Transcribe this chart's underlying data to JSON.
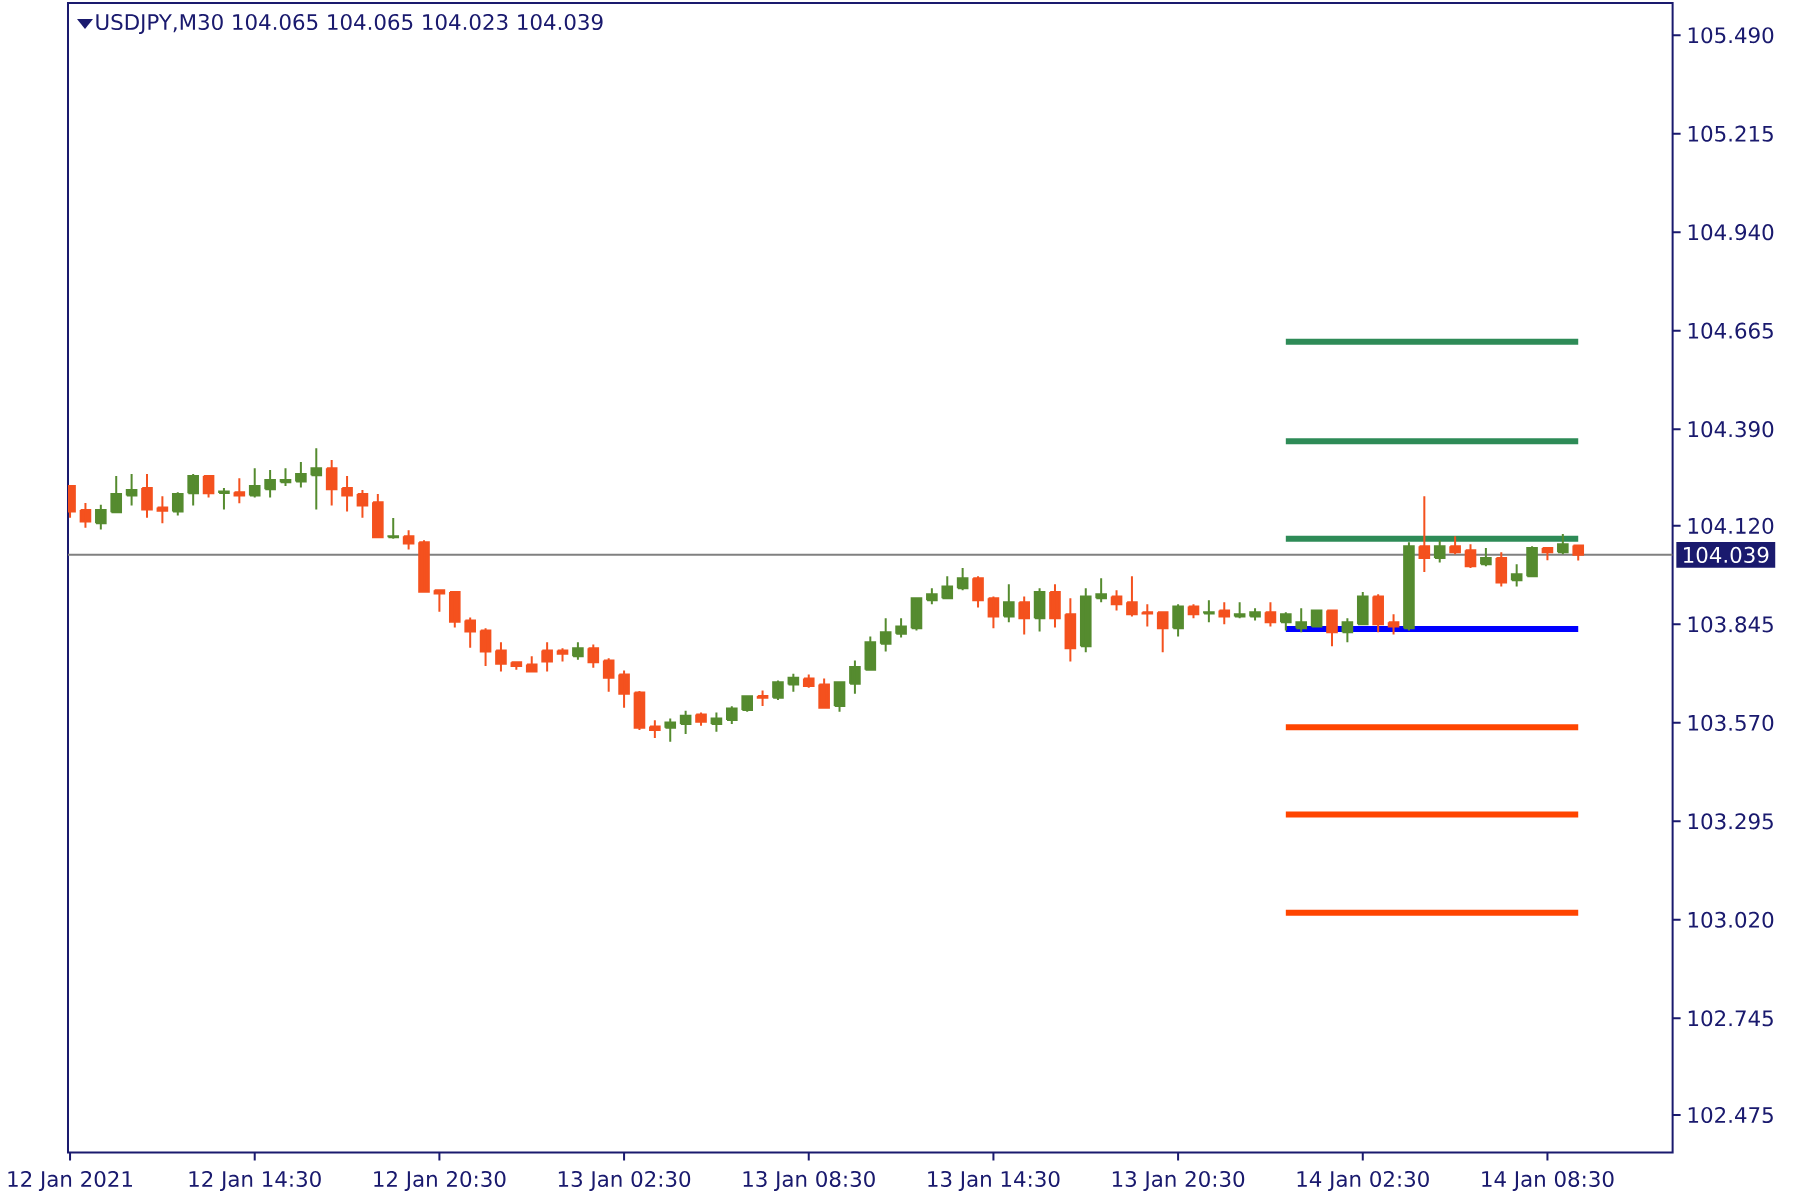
{
  "chart_data": {
    "type": "candlestick",
    "title": "USDJPY,M30  104.065 104.065 104.023 104.039",
    "x": [
      "2021-01-12T08:30",
      "2021-01-12T09:00",
      "2021-01-12T09:30",
      "2021-01-12T10:00",
      "2021-01-12T10:30",
      "2021-01-12T11:00",
      "2021-01-12T11:30",
      "2021-01-12T12:00",
      "2021-01-12T12:30",
      "2021-01-12T13:00",
      "2021-01-12T13:30",
      "2021-01-12T14:00",
      "2021-01-12T14:30",
      "2021-01-12T15:00",
      "2021-01-12T15:30",
      "2021-01-12T16:00",
      "2021-01-12T16:30",
      "2021-01-12T17:00",
      "2021-01-12T17:30",
      "2021-01-12T18:00",
      "2021-01-12T18:30",
      "2021-01-12T19:00",
      "2021-01-12T19:30",
      "2021-01-12T20:00",
      "2021-01-12T20:30",
      "2021-01-12T21:00",
      "2021-01-12T21:30",
      "2021-01-12T22:00",
      "2021-01-12T22:30",
      "2021-01-12T23:00",
      "2021-01-12T23:30",
      "2021-01-13T00:00",
      "2021-01-13T00:30",
      "2021-01-13T01:00",
      "2021-01-13T01:30",
      "2021-01-13T02:00",
      "2021-01-13T02:30",
      "2021-01-13T03:00",
      "2021-01-13T03:30",
      "2021-01-13T04:00",
      "2021-01-13T04:30",
      "2021-01-13T05:00",
      "2021-01-13T05:30",
      "2021-01-13T06:00",
      "2021-01-13T06:30",
      "2021-01-13T07:00",
      "2021-01-13T07:30",
      "2021-01-13T08:00",
      "2021-01-13T08:30",
      "2021-01-13T09:00",
      "2021-01-13T09:30",
      "2021-01-13T10:00",
      "2021-01-13T10:30",
      "2021-01-13T11:00",
      "2021-01-13T11:30",
      "2021-01-13T12:00",
      "2021-01-13T12:30",
      "2021-01-13T13:00",
      "2021-01-13T13:30",
      "2021-01-13T14:00",
      "2021-01-13T14:30",
      "2021-01-13T15:00",
      "2021-01-13T15:30",
      "2021-01-13T16:00",
      "2021-01-13T16:30",
      "2021-01-13T17:00",
      "2021-01-13T17:30",
      "2021-01-13T18:00",
      "2021-01-13T18:30",
      "2021-01-13T19:00",
      "2021-01-13T19:30",
      "2021-01-13T20:00",
      "2021-01-13T20:30",
      "2021-01-13T21:00",
      "2021-01-13T21:30",
      "2021-01-13T22:00",
      "2021-01-13T22:30",
      "2021-01-13T23:00",
      "2021-01-13T23:30",
      "2021-01-14T00:00",
      "2021-01-14T00:30",
      "2021-01-14T01:00",
      "2021-01-14T01:30",
      "2021-01-14T02:00",
      "2021-01-14T02:30",
      "2021-01-14T03:00",
      "2021-01-14T03:30",
      "2021-01-14T04:00",
      "2021-01-14T04:30",
      "2021-01-14T05:00",
      "2021-01-14T05:30",
      "2021-01-14T06:00",
      "2021-01-14T06:30",
      "2021-01-14T07:00",
      "2021-01-14T07:30",
      "2021-01-14T08:00",
      "2021-01-14T08:30",
      "2021-01-14T09:00",
      "2021-01-14T09:30"
    ],
    "ohlc": [
      [
        104.231,
        104.231,
        104.143,
        104.16
      ],
      [
        104.164,
        104.184,
        104.115,
        104.132
      ],
      [
        104.127,
        104.179,
        104.11,
        104.164
      ],
      [
        104.158,
        104.259,
        104.155,
        104.209
      ],
      [
        104.205,
        104.265,
        104.177,
        104.22
      ],
      [
        104.226,
        104.265,
        104.143,
        104.166
      ],
      [
        104.171,
        104.203,
        104.127,
        104.162
      ],
      [
        104.16,
        104.214,
        104.149,
        104.209
      ],
      [
        104.211,
        104.265,
        104.177,
        104.259
      ],
      [
        104.259,
        104.259,
        104.199,
        104.211
      ],
      [
        104.212,
        104.226,
        104.166,
        104.216
      ],
      [
        104.214,
        104.253,
        104.183,
        104.205
      ],
      [
        104.205,
        104.281,
        104.199,
        104.231
      ],
      [
        104.222,
        104.276,
        104.199,
        104.248
      ],
      [
        104.242,
        104.281,
        104.231,
        104.248
      ],
      [
        104.244,
        104.298,
        104.227,
        104.265
      ],
      [
        104.261,
        104.337,
        104.166,
        104.281
      ],
      [
        104.281,
        104.304,
        104.177,
        104.222
      ],
      [
        104.226,
        104.259,
        104.16,
        104.205
      ],
      [
        104.209,
        104.22,
        104.143,
        104.177
      ],
      [
        104.186,
        104.209,
        104.088,
        104.088
      ],
      [
        104.088,
        104.142,
        104.084,
        104.091
      ],
      [
        104.091,
        104.108,
        104.054,
        104.071
      ],
      [
        104.074,
        104.08,
        103.936,
        103.936
      ],
      [
        103.94,
        103.94,
        103.88,
        103.931
      ],
      [
        103.935,
        103.935,
        103.836,
        103.852
      ],
      [
        103.856,
        103.864,
        103.78,
        103.825
      ],
      [
        103.828,
        103.834,
        103.729,
        103.769
      ],
      [
        103.772,
        103.795,
        103.713,
        103.735
      ],
      [
        103.739,
        103.739,
        103.718,
        103.729
      ],
      [
        103.733,
        103.756,
        103.713,
        103.713
      ],
      [
        103.772,
        103.795,
        103.713,
        103.741
      ],
      [
        103.772,
        103.778,
        103.741,
        103.763
      ],
      [
        103.756,
        103.795,
        103.746,
        103.778
      ],
      [
        103.778,
        103.789,
        103.724,
        103.739
      ],
      [
        103.744,
        103.75,
        103.657,
        103.696
      ],
      [
        103.705,
        103.716,
        103.612,
        103.651
      ],
      [
        103.655,
        103.659,
        103.55,
        103.556
      ],
      [
        103.56,
        103.577,
        103.528,
        103.55
      ],
      [
        103.556,
        103.582,
        103.517,
        103.571
      ],
      [
        103.567,
        103.604,
        103.539,
        103.59
      ],
      [
        103.593,
        103.599,
        103.562,
        103.573
      ],
      [
        103.567,
        103.599,
        103.545,
        103.582
      ],
      [
        103.578,
        103.616,
        103.567,
        103.61
      ],
      [
        103.606,
        103.644,
        103.601,
        103.644
      ],
      [
        103.645,
        103.66,
        103.617,
        103.64
      ],
      [
        103.64,
        103.688,
        103.634,
        103.683
      ],
      [
        103.677,
        103.707,
        103.657,
        103.696
      ],
      [
        103.694,
        103.705,
        103.668,
        103.673
      ],
      [
        103.677,
        103.694,
        103.612,
        103.612
      ],
      [
        103.617,
        103.683,
        103.601,
        103.683
      ],
      [
        103.679,
        103.744,
        103.651,
        103.726
      ],
      [
        103.718,
        103.811,
        103.718,
        103.795
      ],
      [
        103.791,
        103.862,
        103.769,
        103.823
      ],
      [
        103.819,
        103.862,
        103.808,
        103.839
      ],
      [
        103.834,
        103.921,
        103.828,
        103.918
      ],
      [
        103.912,
        103.946,
        103.901,
        103.929
      ],
      [
        103.918,
        103.979,
        103.918,
        103.951
      ],
      [
        103.946,
        104.002,
        103.94,
        103.974
      ],
      [
        103.974,
        103.979,
        103.892,
        103.912
      ],
      [
        103.918,
        103.923,
        103.834,
        103.867
      ],
      [
        103.867,
        103.957,
        103.851,
        103.907
      ],
      [
        103.907,
        103.923,
        103.817,
        103.862
      ],
      [
        103.862,
        103.946,
        103.825,
        103.935
      ],
      [
        103.935,
        103.957,
        103.836,
        103.862
      ],
      [
        103.873,
        103.918,
        103.741,
        103.778
      ],
      [
        103.784,
        103.946,
        103.767,
        103.923
      ],
      [
        103.918,
        103.974,
        103.907,
        103.929
      ],
      [
        103.923,
        103.94,
        103.884,
        103.901
      ],
      [
        103.907,
        103.979,
        103.867,
        103.873
      ],
      [
        103.879,
        103.901,
        103.839,
        103.875
      ],
      [
        103.879,
        103.879,
        103.767,
        103.834
      ],
      [
        103.834,
        103.901,
        103.811,
        103.895
      ],
      [
        103.895,
        103.901,
        103.862,
        103.873
      ],
      [
        103.875,
        103.912,
        103.851,
        103.879
      ],
      [
        103.884,
        103.907,
        103.845,
        103.867
      ],
      [
        103.867,
        103.907,
        103.862,
        103.873
      ],
      [
        103.867,
        103.89,
        103.856,
        103.879
      ],
      [
        103.879,
        103.907,
        103.839,
        103.851
      ],
      [
        103.851,
        103.879,
        103.828,
        103.873
      ],
      [
        103.834,
        103.89,
        103.823,
        103.851
      ],
      [
        103.839,
        103.884,
        103.839,
        103.884
      ],
      [
        103.884,
        103.884,
        103.784,
        103.823
      ],
      [
        103.823,
        103.862,
        103.795,
        103.851
      ],
      [
        103.845,
        103.935,
        103.845,
        103.923
      ],
      [
        103.923,
        103.929,
        103.823,
        103.845
      ],
      [
        103.851,
        103.873,
        103.817,
        103.839
      ],
      [
        103.834,
        104.074,
        103.828,
        104.063
      ],
      [
        104.063,
        104.203,
        103.991,
        104.03
      ],
      [
        104.03,
        104.08,
        104.018,
        104.063
      ],
      [
        104.063,
        104.091,
        104.041,
        104.046
      ],
      [
        104.052,
        104.069,
        104.002,
        104.007
      ],
      [
        104.013,
        104.058,
        104.007,
        104.03
      ],
      [
        104.03,
        104.046,
        103.951,
        103.962
      ],
      [
        103.968,
        104.013,
        103.951,
        103.985
      ],
      [
        103.979,
        104.063,
        103.979,
        104.058
      ],
      [
        104.058,
        104.058,
        104.024,
        104.046
      ],
      [
        104.046,
        104.097,
        104.041,
        104.069
      ],
      [
        104.065,
        104.065,
        104.023,
        104.039
      ]
    ],
    "colors": [
      "#f4511e",
      "#f4511e",
      "#558b2f",
      "#558b2f",
      "#558b2f",
      "#f4511e",
      "#f4511e",
      "#558b2f",
      "#558b2f",
      "#f4511e",
      "#558b2f",
      "#f4511e",
      "#558b2f",
      "#558b2f",
      "#558b2f",
      "#558b2f",
      "#558b2f",
      "#f4511e",
      "#f4511e",
      "#f4511e",
      "#f4511e",
      "#558b2f",
      "#f4511e",
      "#f4511e",
      "#f4511e",
      "#f4511e",
      "#f4511e",
      "#f4511e",
      "#f4511e",
      "#f4511e",
      "#f4511e",
      "#f4511e",
      "#f4511e",
      "#558b2f",
      "#f4511e",
      "#f4511e",
      "#f4511e",
      "#f4511e",
      "#f4511e",
      "#558b2f",
      "#558b2f",
      "#f4511e",
      "#558b2f",
      "#558b2f",
      "#558b2f",
      "#f4511e",
      "#558b2f",
      "#558b2f",
      "#f4511e",
      "#f4511e",
      "#558b2f",
      "#558b2f",
      "#558b2f",
      "#558b2f",
      "#558b2f",
      "#558b2f",
      "#558b2f",
      "#558b2f",
      "#558b2f",
      "#f4511e",
      "#f4511e",
      "#558b2f",
      "#f4511e",
      "#558b2f",
      "#f4511e",
      "#f4511e",
      "#558b2f",
      "#558b2f",
      "#f4511e",
      "#f4511e",
      "#f4511e",
      "#f4511e",
      "#558b2f",
      "#f4511e",
      "#558b2f",
      "#f4511e",
      "#558b2f",
      "#558b2f",
      "#f4511e",
      "#558b2f",
      "#558b2f",
      "#558b2f",
      "#f4511e",
      "#558b2f",
      "#558b2f",
      "#f4511e",
      "#f4511e",
      "#558b2f",
      "#f4511e",
      "#558b2f",
      "#f4511e",
      "#f4511e",
      "#558b2f",
      "#f4511e",
      "#558b2f",
      "#558b2f",
      "#f4511e",
      "#558b2f",
      "#f4511e"
    ],
    "series": [
      {
        "type": "line",
        "color": "#2e8b57",
        "x": [
          "2021-01-14T00:00",
          "2021-01-14T09:30"
        ],
        "values": [
          104.634,
          104.634
        ]
      },
      {
        "type": "line",
        "color": "#2e8b57",
        "x": [
          "2021-01-14T00:00",
          "2021-01-14T09:30"
        ],
        "values": [
          104.356,
          104.356
        ]
      },
      {
        "type": "line",
        "color": "#2e8b57",
        "x": [
          "2021-01-14T00:00",
          "2021-01-14T09:30"
        ],
        "values": [
          104.084,
          104.084
        ]
      },
      {
        "type": "line",
        "color": "#0000ff",
        "x": [
          "2021-01-14T00:00",
          "2021-01-14T09:30"
        ],
        "values": [
          103.832,
          103.832
        ]
      },
      {
        "type": "line",
        "color": "#ff4500",
        "x": [
          "2021-01-14T00:00",
          "2021-01-14T09:30"
        ],
        "values": [
          103.558,
          103.558
        ]
      },
      {
        "type": "line",
        "color": "#ff4500",
        "x": [
          "2021-01-14T00:00",
          "2021-01-14T09:30"
        ],
        "values": [
          103.314,
          103.314
        ]
      },
      {
        "type": "line",
        "color": "#ff4500",
        "x": [
          "2021-01-14T00:00",
          "2021-01-14T09:30"
        ],
        "values": [
          103.04,
          103.04
        ]
      }
    ],
    "ref_lines": [
      {
        "axis": "y",
        "value": 104.039,
        "label": "104.039",
        "color": "#808080"
      }
    ],
    "xlim": [
      "2021-01-12T08:26",
      "2021-01-14T12:34"
    ],
    "xticks": [
      {
        "value": "2021-01-12T08:30",
        "label": "12 Jan 2021"
      },
      {
        "value": "2021-01-12T14:30",
        "label": "12 Jan 14:30"
      },
      {
        "value": "2021-01-12T20:30",
        "label": "12 Jan 20:30"
      },
      {
        "value": "2021-01-13T02:30",
        "label": "13 Jan 02:30"
      },
      {
        "value": "2021-01-13T08:30",
        "label": "13 Jan 08:30"
      },
      {
        "value": "2021-01-13T14:30",
        "label": "13 Jan 14:30"
      },
      {
        "value": "2021-01-13T20:30",
        "label": "13 Jan 20:30"
      },
      {
        "value": "2021-01-14T02:30",
        "label": "14 Jan 02:30"
      },
      {
        "value": "2021-01-14T08:30",
        "label": "14 Jan 08:30"
      }
    ],
    "ylim": [
      102.37,
      105.58
    ],
    "yticks": [
      {
        "value": 105.49,
        "label": "105.490"
      },
      105.215,
      {
        "value": 104.94,
        "label": "104.940"
      },
      104.665,
      {
        "value": 104.39,
        "label": "104.390"
      },
      {
        "value": 104.12,
        "label": "104.120"
      },
      103.845,
      {
        "value": 103.57,
        "label": "103.570"
      },
      103.295,
      {
        "value": 103.02,
        "label": "103.020"
      },
      102.745,
      102.475
    ]
  }
}
